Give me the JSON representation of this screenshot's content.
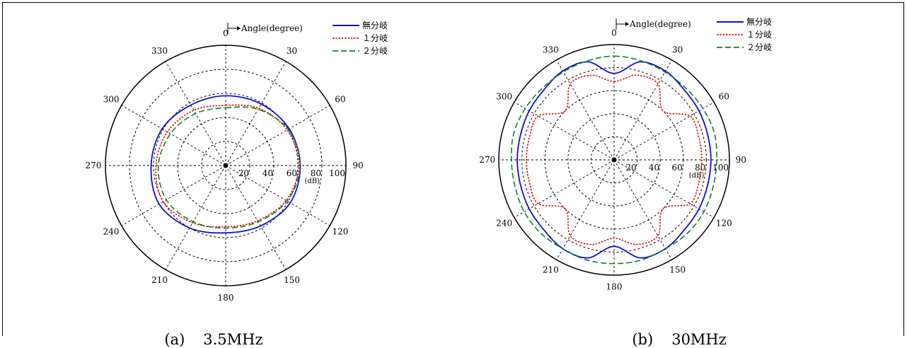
{
  "figure": {
    "angle_axis_label": "Angle(degree)",
    "radial_unit": "(dB)",
    "captions": [
      {
        "label": "(a)",
        "text": "3.5MHz"
      },
      {
        "label": "(b)",
        "text": "30MHz"
      }
    ]
  },
  "chart_data": [
    {
      "type": "polar-line",
      "caption": "(a)  3.5MHz",
      "angle_label": "Angle(degree)",
      "radial_unit": "(dB)",
      "angle_ticks": [
        0,
        30,
        60,
        90,
        120,
        150,
        180,
        210,
        240,
        270,
        300,
        330
      ],
      "angle_direction": "clockwise from top",
      "r_ticks": [
        20,
        40,
        60,
        80,
        100
      ],
      "r_range": [
        0,
        100
      ],
      "grid": true,
      "legend_position": "top-right",
      "series": [
        {
          "name": "無分岐",
          "color": "#1010d0",
          "dash": "solid",
          "angles": [
            0,
            30,
            60,
            90,
            120,
            150,
            180,
            210,
            240,
            270,
            300,
            330,
            360
          ],
          "values": [
            58,
            59,
            61,
            62,
            62,
            58,
            56,
            60,
            64,
            62,
            61,
            58,
            58
          ]
        },
        {
          "name": "１分岐",
          "color": "#e01010",
          "dash": "dotted",
          "angles": [
            0,
            30,
            60,
            90,
            120,
            150,
            180,
            210,
            240,
            270,
            300,
            330,
            360
          ],
          "values": [
            50,
            55,
            59,
            61,
            58,
            53,
            51,
            55,
            60,
            58,
            56,
            53,
            50
          ]
        },
        {
          "name": "２分岐",
          "color": "#108030",
          "dash": "dashed",
          "angles": [
            0,
            30,
            60,
            90,
            120,
            150,
            180,
            210,
            240,
            270,
            300,
            330,
            360
          ],
          "values": [
            48,
            54,
            60,
            62,
            59,
            54,
            52,
            54,
            57,
            56,
            53,
            50,
            48
          ]
        }
      ]
    },
    {
      "type": "polar-line",
      "caption": "(b)  30MHz",
      "angle_label": "Angle(degree)",
      "radial_unit": "(dB)",
      "angle_ticks": [
        0,
        30,
        60,
        90,
        120,
        150,
        180,
        210,
        240,
        270,
        300,
        330
      ],
      "angle_direction": "clockwise from top",
      "r_ticks": [
        20,
        40,
        60,
        80,
        100
      ],
      "r_range": [
        0,
        100
      ],
      "grid": true,
      "legend_position": "top-right",
      "series": [
        {
          "name": "無分岐",
          "color": "#1010d0",
          "dash": "solid",
          "angles": [
            0,
            15,
            30,
            45,
            60,
            75,
            90,
            105,
            120,
            135,
            150,
            165,
            180,
            195,
            210,
            225,
            240,
            255,
            270,
            285,
            300,
            315,
            330,
            345,
            360
          ],
          "values": [
            75,
            88,
            89,
            86,
            85,
            84,
            84,
            84,
            85,
            86,
            89,
            88,
            75,
            88,
            89,
            86,
            85,
            84,
            84,
            84,
            85,
            86,
            89,
            88,
            75
          ]
        },
        {
          "name": "１分岐",
          "color": "#e01010",
          "dash": "dotted",
          "angles": [
            0,
            15,
            30,
            45,
            60,
            75,
            90,
            105,
            120,
            135,
            150,
            165,
            180,
            195,
            210,
            225,
            240,
            255,
            270,
            285,
            300,
            315,
            330,
            345,
            360
          ],
          "values": [
            68,
            76,
            76,
            60,
            76,
            76,
            76,
            76,
            76,
            60,
            76,
            76,
            68,
            76,
            76,
            60,
            76,
            76,
            76,
            76,
            76,
            60,
            76,
            76,
            68
          ]
        },
        {
          "name": "２分岐",
          "color": "#108030",
          "dash": "dashed",
          "angles": [
            0,
            15,
            30,
            45,
            60,
            75,
            90,
            105,
            120,
            135,
            150,
            165,
            180,
            195,
            210,
            225,
            240,
            255,
            270,
            285,
            300,
            315,
            330,
            345,
            360
          ],
          "values": [
            90,
            89,
            88,
            88,
            89,
            90,
            89,
            89,
            90,
            90,
            89,
            90,
            90,
            90,
            89,
            90,
            90,
            89,
            89,
            90,
            89,
            88,
            88,
            89,
            90
          ]
        }
      ]
    }
  ]
}
